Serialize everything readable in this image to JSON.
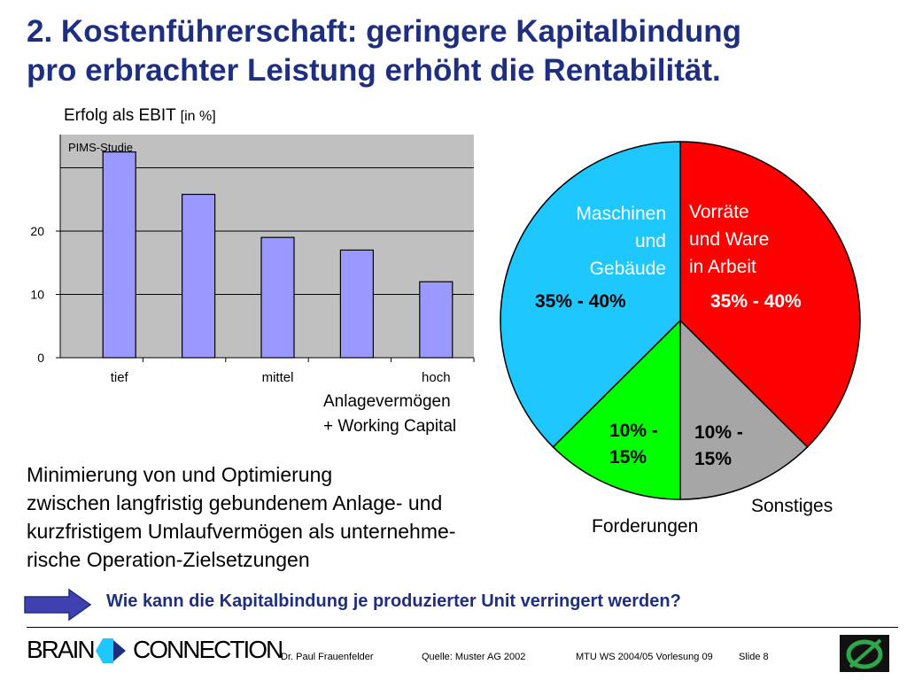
{
  "slide": {
    "title_line1": "2. Kostenführerschaft: geringere Kapitalbindung",
    "title_line2": "pro erbrachter Leistung erhöht die Rentabilität.",
    "description": [
      "Minimierung von und Optimierung",
      "zwischen langfristig gebundenem Anlage- und",
      "kurzfristigem Umlaufvermögen als unternehme-",
      "rische Operation-Zielsetzungen"
    ],
    "question": "Wie kann die Kapitalbindung je produzierter Unit verringert werden?"
  },
  "bar_chart": {
    "ylabel_main": "Erfolg als EBIT",
    "ylabel_unit": "[in %]",
    "source_note": "PIMS-Studie",
    "xlabel_line1": "Anlagevermögen",
    "xlabel_line2": "+ Working Capital"
  },
  "pie_chart": {
    "maschinen_l1": "Maschinen",
    "maschinen_l2": "und",
    "maschinen_l3": "Gebäude",
    "maschinen_pct": "35% - 40%",
    "vorraete_l1": "Vorräte",
    "vorraete_l2": "und Ware",
    "vorraete_l3": "in Arbeit",
    "vorraete_pct": "35% - 40%",
    "forderungen_pct_l1": "10% -",
    "forderungen_pct_l2": "15%",
    "forderungen_label": "Forderungen",
    "sonstiges_pct_l1": "10% -",
    "sonstiges_pct_l2": "15%",
    "sonstiges_label": "Sonstiges"
  },
  "chart_data": [
    {
      "type": "bar",
      "title": "",
      "ylabel": "Erfolg als EBIT [in %]",
      "xlabel": "Anlagevermögen + Working Capital",
      "categories": [
        "tief",
        "",
        "mittel",
        "",
        "hoch"
      ],
      "values": [
        32.5,
        25.8,
        19.0,
        17.0,
        12.0
      ],
      "yticks": [
        "0",
        "10",
        "20"
      ],
      "ylim": [
        0,
        35
      ],
      "grid": true,
      "color": "#9999ff"
    },
    {
      "type": "pie",
      "title": "",
      "labels": [
        "Vorräte und Ware in Arbeit",
        "Sonstiges",
        "Forderungen",
        "Maschinen und Gebäude"
      ],
      "values": [
        37.5,
        12.5,
        12.5,
        37.5
      ],
      "value_labels": [
        "35% - 40%",
        "10% - 15%",
        "10% - 15%",
        "35% - 40%"
      ],
      "colors": [
        "#ff0000",
        "#a6a6a6",
        "#00ff00",
        "#1ec8ff"
      ]
    }
  ],
  "footer": {
    "brand_left": "BRAIN",
    "brand_right": "CONNECTION",
    "author": "Dr. Paul Frauenfelder",
    "source": "Quelle: Muster AG 2002",
    "course": "MTU WS 2004/05 Vorlesung 09",
    "slide_label": "Slide 8"
  }
}
